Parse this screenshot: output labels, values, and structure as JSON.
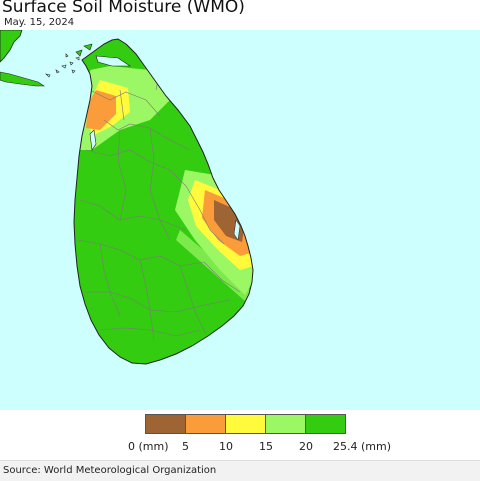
{
  "title": "Surface Soil Moisture (WMO)",
  "date": "May. 15, 2024",
  "source": "Source: World Meteorological Organization",
  "legend": {
    "unit_start": "0 (mm)",
    "labels": [
      "5",
      "10",
      "15",
      "20",
      "25.4 (mm)"
    ],
    "classes": [
      {
        "range": "0-5",
        "color": "#9e6433"
      },
      {
        "range": "5-10",
        "color": "#fb9c3a"
      },
      {
        "range": "10-15",
        "color": "#fffb3c"
      },
      {
        "range": "15-20",
        "color": "#9cf765"
      },
      {
        "range": "20-25.4",
        "color": "#33cc10"
      }
    ]
  },
  "colors": {
    "ocean": "#ccfffe",
    "boundary": "#7a7a7a",
    "coast": "#222222"
  }
}
